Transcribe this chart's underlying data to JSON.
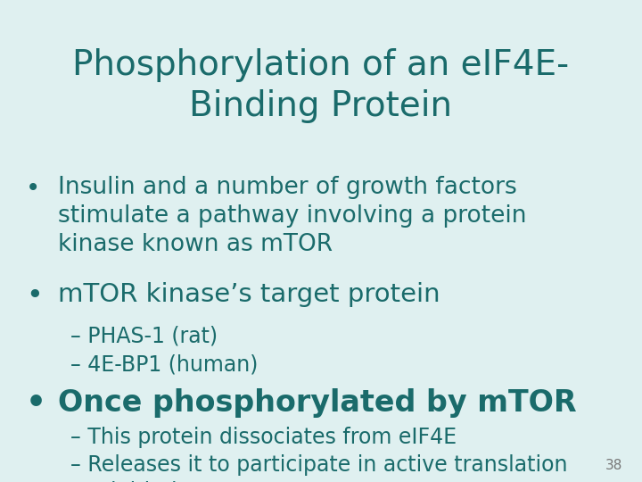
{
  "title_line1": "Phosphorylation of an eIF4E-",
  "title_line2": "Binding Protein",
  "title_color": "#1a6b6b",
  "background_color": "#dff0f0",
  "text_color": "#1a6b6b",
  "title_fontsize": 28,
  "bullet1_fontsize": 19,
  "bullet2_fontsize": 21,
  "bullet3_fontsize": 24,
  "sub_fontsize": 17,
  "page_number": "38",
  "page_num_color": "#777777",
  "page_num_fontsize": 11
}
